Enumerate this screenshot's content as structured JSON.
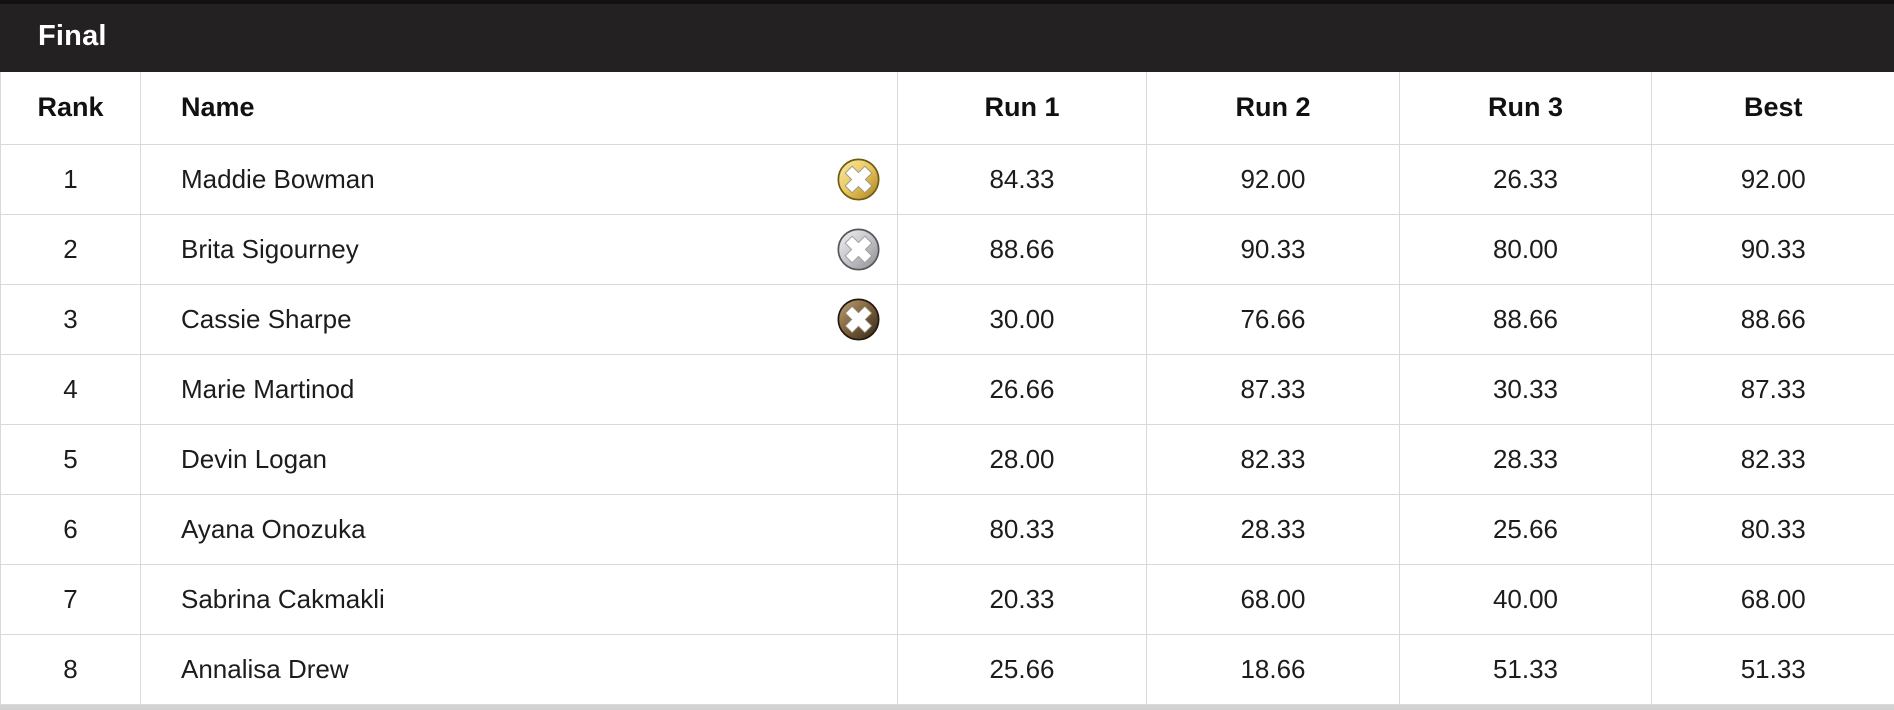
{
  "section": {
    "title": "Final"
  },
  "table": {
    "columns": [
      {
        "key": "rank",
        "label": "Rank"
      },
      {
        "key": "name",
        "label": "Name"
      },
      {
        "key": "run1",
        "label": "Run 1"
      },
      {
        "key": "run2",
        "label": "Run 2"
      },
      {
        "key": "run3",
        "label": "Run 3"
      },
      {
        "key": "best",
        "label": "Best"
      }
    ],
    "rows": [
      {
        "rank": "1",
        "name": "Maddie Bowman",
        "medal": "gold",
        "run1": "84.33",
        "run2": "92.00",
        "run3": "26.33",
        "best": "92.00"
      },
      {
        "rank": "2",
        "name": "Brita Sigourney",
        "medal": "silver",
        "run1": "88.66",
        "run2": "90.33",
        "run3": "80.00",
        "best": "90.33"
      },
      {
        "rank": "3",
        "name": "Cassie Sharpe",
        "medal": "bronze",
        "run1": "30.00",
        "run2": "76.66",
        "run3": "88.66",
        "best": "88.66"
      },
      {
        "rank": "4",
        "name": "Marie Martinod",
        "medal": null,
        "run1": "26.66",
        "run2": "87.33",
        "run3": "30.33",
        "best": "87.33"
      },
      {
        "rank": "5",
        "name": "Devin Logan",
        "medal": null,
        "run1": "28.00",
        "run2": "82.33",
        "run3": "28.33",
        "best": "82.33"
      },
      {
        "rank": "6",
        "name": "Ayana Onozuka",
        "medal": null,
        "run1": "80.33",
        "run2": "28.33",
        "run3": "25.66",
        "best": "80.33"
      },
      {
        "rank": "7",
        "name": "Sabrina Cakmakli",
        "medal": null,
        "run1": "20.33",
        "run2": "68.00",
        "run3": "40.00",
        "best": "68.00"
      },
      {
        "rank": "8",
        "name": "Annalisa Drew",
        "medal": null,
        "run1": "25.66",
        "run2": "18.66",
        "run3": "51.33",
        "best": "51.33"
      }
    ]
  },
  "colors": {
    "title_bar_bg": "#242122",
    "title_bar_top_strip": "#121011",
    "title_text": "#ffffff",
    "grid_line": "#d9d9d9",
    "bottom_border": "#d2d2d2",
    "header_text": "#111111",
    "body_text": "#1c1c1c"
  },
  "medal_colors": {
    "gold": {
      "light": "#f8eba8",
      "mid": "#e9c75d",
      "dark": "#a87c1a",
      "outline": "#6e5a17",
      "x_outline": "#a09a85"
    },
    "silver": {
      "light": "#f4f4f6",
      "mid": "#c4c4c9",
      "dark": "#8b8b91",
      "outline": "#55555b",
      "x_outline": "#a0a0a0"
    },
    "bronze": {
      "light": "#c0a477",
      "mid": "#7b5e39",
      "dark": "#342518",
      "outline": "#211811",
      "x_outline": "#8f8570"
    }
  }
}
